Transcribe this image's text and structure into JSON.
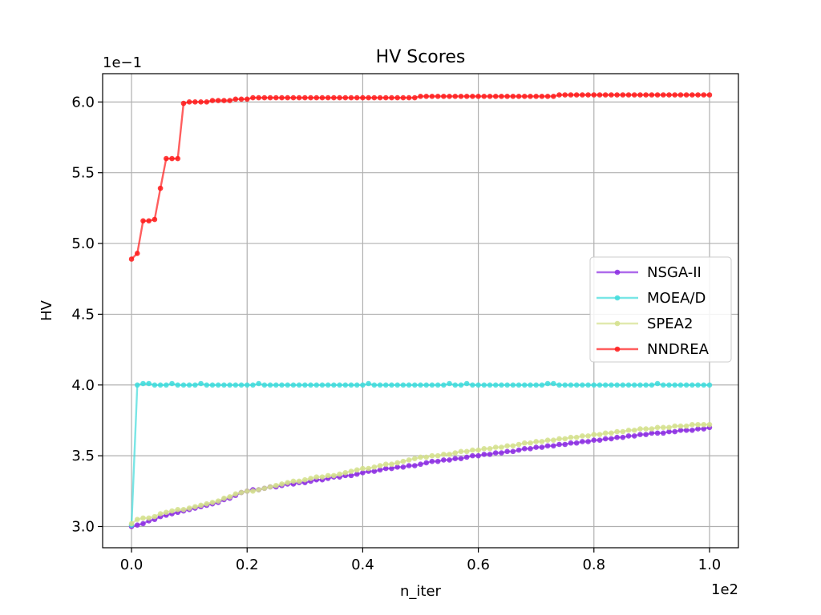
{
  "chart_data": {
    "type": "line",
    "title": "HV Scores",
    "xlabel": "n_iter",
    "ylabel": "HV",
    "x_multiplier_label": "1e2",
    "y_multiplier_label": "1e−1",
    "xlim": [
      -5,
      105
    ],
    "ylim": [
      2.85,
      6.2
    ],
    "x_ticks": [
      0,
      20,
      40,
      60,
      80,
      100
    ],
    "x_tick_labels": [
      "0.0",
      "0.2",
      "0.4",
      "0.6",
      "0.8",
      "1.0"
    ],
    "y_ticks": [
      3.0,
      3.5,
      4.0,
      4.5,
      5.0,
      5.5,
      6.0
    ],
    "y_tick_labels": [
      "3.0",
      "3.5",
      "4.0",
      "4.5",
      "5.0",
      "5.5",
      "6.0"
    ],
    "grid": true,
    "legend_position": "center-right",
    "x": [
      0,
      1,
      2,
      3,
      4,
      5,
      6,
      7,
      8,
      9,
      10,
      11,
      12,
      13,
      14,
      15,
      16,
      17,
      18,
      19,
      20,
      21,
      22,
      23,
      24,
      25,
      26,
      27,
      28,
      29,
      30,
      31,
      32,
      33,
      34,
      35,
      36,
      37,
      38,
      39,
      40,
      41,
      42,
      43,
      44,
      45,
      46,
      47,
      48,
      49,
      50,
      51,
      52,
      53,
      54,
      55,
      56,
      57,
      58,
      59,
      60,
      61,
      62,
      63,
      64,
      65,
      66,
      67,
      68,
      69,
      70,
      71,
      72,
      73,
      74,
      75,
      76,
      77,
      78,
      79,
      80,
      81,
      82,
      83,
      84,
      85,
      86,
      87,
      88,
      89,
      90,
      91,
      92,
      93,
      94,
      95,
      96,
      97,
      98,
      99,
      100
    ],
    "series": [
      {
        "name": "NSGA-II",
        "color": "#8b2be2",
        "values": [
          3.0,
          3.01,
          3.02,
          3.04,
          3.05,
          3.07,
          3.08,
          3.09,
          3.1,
          3.11,
          3.12,
          3.13,
          3.14,
          3.15,
          3.16,
          3.17,
          3.19,
          3.2,
          3.22,
          3.24,
          3.25,
          3.26,
          3.26,
          3.27,
          3.28,
          3.28,
          3.29,
          3.3,
          3.3,
          3.31,
          3.31,
          3.32,
          3.33,
          3.33,
          3.34,
          3.35,
          3.35,
          3.36,
          3.36,
          3.37,
          3.38,
          3.39,
          3.39,
          3.4,
          3.41,
          3.41,
          3.42,
          3.42,
          3.43,
          3.43,
          3.44,
          3.45,
          3.46,
          3.46,
          3.47,
          3.47,
          3.48,
          3.48,
          3.49,
          3.5,
          3.5,
          3.51,
          3.51,
          3.52,
          3.52,
          3.53,
          3.53,
          3.54,
          3.55,
          3.55,
          3.56,
          3.56,
          3.57,
          3.57,
          3.58,
          3.58,
          3.59,
          3.59,
          3.6,
          3.6,
          3.61,
          3.61,
          3.62,
          3.62,
          3.63,
          3.63,
          3.64,
          3.64,
          3.65,
          3.65,
          3.66,
          3.66,
          3.66,
          3.67,
          3.67,
          3.68,
          3.68,
          3.68,
          3.69,
          3.69,
          3.7
        ]
      },
      {
        "name": "MOEA/D",
        "color": "#40dcdc",
        "values": [
          3.01,
          4.0,
          4.01,
          4.01,
          4.0,
          4.0,
          4.0,
          4.01,
          4.0,
          4.0,
          4.0,
          4.0,
          4.01,
          4.0,
          4.0,
          4.0,
          4.0,
          4.0,
          4.0,
          4.0,
          4.0,
          4.0,
          4.01,
          4.0,
          4.0,
          4.0,
          4.0,
          4.0,
          4.0,
          4.0,
          4.0,
          4.0,
          4.0,
          4.0,
          4.0,
          4.0,
          4.0,
          4.0,
          4.0,
          4.0,
          4.0,
          4.01,
          4.0,
          4.0,
          4.0,
          4.0,
          4.0,
          4.0,
          4.0,
          4.0,
          4.0,
          4.0,
          4.0,
          4.0,
          4.0,
          4.01,
          4.0,
          4.0,
          4.01,
          4.0,
          4.0,
          4.0,
          4.0,
          4.0,
          4.0,
          4.0,
          4.0,
          4.0,
          4.0,
          4.0,
          4.0,
          4.0,
          4.01,
          4.01,
          4.0,
          4.0,
          4.0,
          4.0,
          4.0,
          4.0,
          4.0,
          4.0,
          4.0,
          4.0,
          4.0,
          4.0,
          4.0,
          4.0,
          4.0,
          4.0,
          4.0,
          4.01,
          4.0,
          4.0,
          4.0,
          4.0,
          4.0,
          4.0,
          4.0,
          4.0,
          4.0
        ]
      },
      {
        "name": "SPEA2",
        "color": "#d4e08c",
        "values": [
          3.02,
          3.05,
          3.06,
          3.06,
          3.07,
          3.09,
          3.1,
          3.11,
          3.12,
          3.12,
          3.13,
          3.14,
          3.15,
          3.16,
          3.17,
          3.18,
          3.2,
          3.21,
          3.23,
          3.24,
          3.25,
          3.25,
          3.26,
          3.27,
          3.28,
          3.29,
          3.3,
          3.31,
          3.32,
          3.32,
          3.33,
          3.34,
          3.35,
          3.35,
          3.36,
          3.36,
          3.37,
          3.38,
          3.39,
          3.4,
          3.41,
          3.41,
          3.42,
          3.43,
          3.44,
          3.44,
          3.45,
          3.46,
          3.47,
          3.48,
          3.49,
          3.49,
          3.5,
          3.5,
          3.51,
          3.51,
          3.52,
          3.53,
          3.53,
          3.54,
          3.54,
          3.55,
          3.55,
          3.56,
          3.56,
          3.57,
          3.57,
          3.58,
          3.59,
          3.59,
          3.6,
          3.6,
          3.61,
          3.61,
          3.62,
          3.62,
          3.63,
          3.63,
          3.64,
          3.64,
          3.65,
          3.65,
          3.66,
          3.66,
          3.67,
          3.67,
          3.68,
          3.68,
          3.69,
          3.69,
          3.69,
          3.7,
          3.7,
          3.7,
          3.71,
          3.71,
          3.71,
          3.72,
          3.72,
          3.72,
          3.72
        ]
      },
      {
        "name": "NNDREA",
        "color": "#ff1a1a",
        "values": [
          4.89,
          4.93,
          5.16,
          5.16,
          5.17,
          5.39,
          5.6,
          5.6,
          5.6,
          5.99,
          6.0,
          6.0,
          6.0,
          6.0,
          6.01,
          6.01,
          6.01,
          6.01,
          6.02,
          6.02,
          6.02,
          6.03,
          6.03,
          6.03,
          6.03,
          6.03,
          6.03,
          6.03,
          6.03,
          6.03,
          6.03,
          6.03,
          6.03,
          6.03,
          6.03,
          6.03,
          6.03,
          6.03,
          6.03,
          6.03,
          6.03,
          6.03,
          6.03,
          6.03,
          6.03,
          6.03,
          6.03,
          6.03,
          6.03,
          6.03,
          6.04,
          6.04,
          6.04,
          6.04,
          6.04,
          6.04,
          6.04,
          6.04,
          6.04,
          6.04,
          6.04,
          6.04,
          6.04,
          6.04,
          6.04,
          6.04,
          6.04,
          6.04,
          6.04,
          6.04,
          6.04,
          6.04,
          6.04,
          6.04,
          6.05,
          6.05,
          6.05,
          6.05,
          6.05,
          6.05,
          6.05,
          6.05,
          6.05,
          6.05,
          6.05,
          6.05,
          6.05,
          6.05,
          6.05,
          6.05,
          6.05,
          6.05,
          6.05,
          6.05,
          6.05,
          6.05,
          6.05,
          6.05,
          6.05,
          6.05,
          6.05
        ]
      }
    ]
  }
}
